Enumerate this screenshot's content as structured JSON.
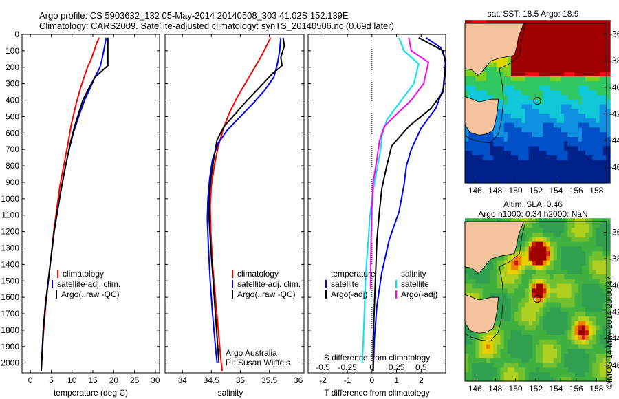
{
  "header": {
    "line1": "Argo profile: CS 5903632_132 05-May-2014 20140508_303 41.02S 152.139E",
    "line2": "Climatology: CARS2009. Satellite-adjusted climatology: synTS_20140506.nc (0.69d later)"
  },
  "colors": {
    "climatology": "#ff0000",
    "satellite": "#0000ff",
    "argo": "#000000",
    "cyan": "#00e5ee",
    "magenta": "#ff00ff",
    "land": "#f5c29e"
  },
  "chart_data": [
    {
      "type": "line",
      "id": "temperature",
      "xlabel": "temperature (deg C)",
      "xlim": [
        -2,
        31
      ],
      "xticks": [
        0,
        5,
        10,
        15,
        20,
        25,
        30
      ],
      "ylim": [
        2060,
        0
      ],
      "yticks": [
        0,
        100,
        200,
        300,
        400,
        500,
        600,
        700,
        800,
        900,
        1000,
        1100,
        1200,
        1300,
        1400,
        1500,
        1600,
        1700,
        1800,
        1900,
        2000
      ],
      "legend": [
        "climatology",
        "satellite-adj. clim.",
        "Argo(..raw -QC)"
      ],
      "series": [
        {
          "name": "climatology",
          "color": "#ff0000",
          "points": [
            [
              16.5,
              20
            ],
            [
              15.8,
              60
            ],
            [
              15.3,
              100
            ],
            [
              14.6,
              150
            ],
            [
              13.7,
              200
            ],
            [
              12.9,
              260
            ],
            [
              12,
              330
            ],
            [
              11,
              420
            ],
            [
              9.8,
              550
            ],
            [
              8.9,
              680
            ],
            [
              8,
              800
            ],
            [
              7.1,
              920
            ],
            [
              6.4,
              1050
            ],
            [
              5.6,
              1200
            ],
            [
              5,
              1350
            ],
            [
              4.3,
              1500
            ],
            [
              3.7,
              1650
            ],
            [
              3.2,
              1800
            ],
            [
              2.8,
              1950
            ],
            [
              2.6,
              2050
            ]
          ]
        },
        {
          "name": "satellite-adj. clim.",
          "color": "#0000ff",
          "points": [
            [
              18.2,
              20
            ],
            [
              17.9,
              60
            ],
            [
              17.6,
              100
            ],
            [
              17.2,
              150
            ],
            [
              16.7,
              200
            ],
            [
              15.5,
              260
            ],
            [
              14.3,
              330
            ],
            [
              13,
              400
            ],
            [
              11.6,
              500
            ],
            [
              10.3,
              600
            ],
            [
              9.3,
              700
            ],
            [
              8.3,
              820
            ],
            [
              7.4,
              940
            ],
            [
              6.5,
              1080
            ],
            [
              5.7,
              1200
            ],
            [
              5,
              1350
            ],
            [
              4.3,
              1500
            ],
            [
              3.6,
              1650
            ],
            [
              3.1,
              1800
            ],
            [
              2.8,
              1950
            ],
            [
              2.6,
              2050
            ]
          ]
        },
        {
          "name": "Argo(..raw -QC)",
          "color": "#000000",
          "points": [
            [
              18.6,
              20
            ],
            [
              18.6,
              100
            ],
            [
              18.6,
              190
            ],
            [
              15.5,
              260
            ],
            [
              14,
              330
            ],
            [
              12.6,
              400
            ],
            [
              11.6,
              480
            ],
            [
              10.6,
              560
            ],
            [
              9.8,
              640
            ],
            [
              9.1,
              720
            ],
            [
              8.3,
              820
            ],
            [
              7.4,
              940
            ],
            [
              6.5,
              1070
            ],
            [
              5.7,
              1200
            ],
            [
              5,
              1350
            ],
            [
              4.3,
              1500
            ],
            [
              3.6,
              1650
            ],
            [
              3.1,
              1800
            ],
            [
              2.8,
              1950
            ],
            [
              2.6,
              2050
            ]
          ]
        }
      ]
    },
    {
      "type": "line",
      "id": "salinity",
      "xlabel": "salinity",
      "xlim": [
        33.7,
        36.1
      ],
      "xticks": [
        34,
        34.5,
        35,
        35.5,
        36
      ],
      "ylim": [
        2060,
        0
      ],
      "legend": [
        "climatology",
        "satellite-adj. clim.",
        "Argo(..raw -QC)"
      ],
      "annotation": [
        "Argo Australia",
        "PI: Susan Wijffels"
      ],
      "series": [
        {
          "name": "climatology",
          "color": "#ff0000",
          "points": [
            [
              35.52,
              20
            ],
            [
              35.44,
              80
            ],
            [
              35.35,
              140
            ],
            [
              35.25,
              200
            ],
            [
              35.1,
              290
            ],
            [
              34.95,
              380
            ],
            [
              34.82,
              470
            ],
            [
              34.72,
              560
            ],
            [
              34.62,
              680
            ],
            [
              34.55,
              800
            ],
            [
              34.5,
              920
            ],
            [
              34.48,
              1040
            ],
            [
              34.49,
              1200
            ],
            [
              34.52,
              1400
            ],
            [
              34.57,
              1600
            ],
            [
              34.62,
              1800
            ],
            [
              34.67,
              2000
            ],
            [
              34.69,
              2050
            ]
          ]
        },
        {
          "name": "satellite-adj. clim.",
          "color": "#0000ff",
          "points": [
            [
              35.7,
              20
            ],
            [
              35.68,
              100
            ],
            [
              35.64,
              180
            ],
            [
              35.58,
              260
            ],
            [
              35.42,
              340
            ],
            [
              35.22,
              420
            ],
            [
              35.0,
              500
            ],
            [
              34.78,
              580
            ],
            [
              34.62,
              660
            ],
            [
              34.52,
              760
            ],
            [
              34.47,
              880
            ],
            [
              34.44,
              1000
            ],
            [
              34.43,
              1120
            ],
            [
              34.45,
              1300
            ],
            [
              34.48,
              1500
            ],
            [
              34.52,
              1700
            ],
            [
              34.57,
              1900
            ],
            [
              34.6,
              2000
            ]
          ]
        },
        {
          "name": "Argo(..raw -QC)",
          "color": "#000000",
          "points": [
            [
              35.74,
              20
            ],
            [
              35.76,
              70
            ],
            [
              35.7,
              140
            ],
            [
              35.72,
              190
            ],
            [
              35.55,
              240
            ],
            [
              35.34,
              320
            ],
            [
              35.12,
              400
            ],
            [
              34.92,
              480
            ],
            [
              34.72,
              560
            ],
            [
              34.6,
              640
            ],
            [
              34.54,
              760
            ],
            [
              34.49,
              880
            ],
            [
              34.46,
              1000
            ],
            [
              34.46,
              1120
            ],
            [
              34.49,
              1300
            ],
            [
              34.53,
              1500
            ],
            [
              34.57,
              1700
            ],
            [
              34.61,
              1900
            ],
            [
              34.63,
              2000
            ]
          ]
        }
      ]
    },
    {
      "type": "line",
      "id": "difference",
      "xlabel": "T difference from climatology",
      "xlabel_top": "S difference from climatology",
      "xlim": [
        -2.6,
        3.0
      ],
      "xticks": [
        -2,
        -1,
        0,
        1,
        2
      ],
      "xticks_s": [
        -0.5,
        -0.25,
        0,
        0.25,
        0.5
      ],
      "ylim": [
        2060,
        0
      ],
      "legend_t": {
        "title": "temperature",
        "items": [
          "satellite",
          "Argo(-adj)"
        ]
      },
      "legend_s": {
        "title": "salinity",
        "items": [
          "satellite",
          "Argo(-adj)"
        ]
      },
      "series": [
        {
          "name": "satellite",
          "color": "#0000ff",
          "points": [
            [
              2.2,
              20
            ],
            [
              2.8,
              80
            ],
            [
              3.0,
              160
            ],
            [
              2.9,
              330
            ],
            [
              2.6,
              450
            ],
            [
              2.0,
              570
            ],
            [
              1.6,
              700
            ],
            [
              1.4,
              800
            ],
            [
              1.3,
              920
            ],
            [
              1.1,
              1080
            ],
            [
              0.7,
              1250
            ],
            [
              0.4,
              1450
            ],
            [
              0.2,
              1650
            ],
            [
              0.1,
              1850
            ],
            [
              0.05,
              2050
            ]
          ]
        },
        {
          "name": "Argo(-adj)",
          "color": "#000000",
          "points": [
            [
              1.9,
              20
            ],
            [
              2.9,
              100
            ],
            [
              3.0,
              180
            ],
            [
              2.9,
              350
            ],
            [
              2.4,
              450
            ],
            [
              1.5,
              560
            ],
            [
              0.8,
              680
            ],
            [
              0.6,
              800
            ],
            [
              0.4,
              940
            ],
            [
              0.3,
              1080
            ],
            [
              0.2,
              1250
            ],
            [
              0.15,
              1450
            ],
            [
              0.1,
              1650
            ],
            [
              0.05,
              1850
            ],
            [
              0.05,
              2050
            ]
          ]
        },
        {
          "name": "satellite",
          "color": "#00e5ee",
          "points": [
            [
              1.1,
              20
            ],
            [
              1.3,
              100
            ],
            [
              1.9,
              180
            ],
            [
              1.7,
              300
            ],
            [
              1.2,
              400
            ],
            [
              0.6,
              520
            ],
            [
              0.4,
              620
            ],
            [
              0.35,
              700
            ],
            [
              0.2,
              820
            ],
            [
              0.05,
              950
            ],
            [
              -0.08,
              1100
            ],
            [
              -0.15,
              1250
            ],
            [
              -0.25,
              1450
            ],
            [
              -0.3,
              1650
            ],
            [
              -0.35,
              1850
            ],
            [
              -0.4,
              2000
            ]
          ]
        },
        {
          "name": "Argo(-adj)",
          "color": "#ff00ff",
          "points": [
            [
              1.5,
              20
            ],
            [
              1.6,
              100
            ],
            [
              2.3,
              170
            ],
            [
              2.1,
              300
            ],
            [
              1.6,
              400
            ],
            [
              0.9,
              500
            ],
            [
              0.5,
              560
            ],
            [
              0.3,
              650
            ],
            [
              0.2,
              760
            ],
            [
              0.05,
              900
            ],
            [
              0,
              1050
            ],
            [
              -0.03,
              1200
            ],
            [
              -0.05,
              1400
            ],
            [
              -0.05,
              1550
            ]
          ]
        }
      ]
    },
    {
      "type": "heatmap",
      "id": "sst-map",
      "title": "sat. SST: 18.5  Argo: 18.9",
      "xlim": [
        145,
        159
      ],
      "ylim": [
        -47.2,
        -35.2
      ],
      "xticks": [
        146,
        148,
        150,
        152,
        154,
        156,
        158
      ],
      "yticks": [
        -36,
        -38,
        -40,
        -42,
        -44,
        -46
      ],
      "marker": [
        152.139,
        -41.02
      ]
    },
    {
      "type": "heatmap",
      "id": "sla-map",
      "title": "Altim. SLA: 0.46",
      "subtitle": "Argo h1000: 0.34 h2000: NaN",
      "xlim": [
        145,
        159
      ],
      "ylim": [
        -47.2,
        -35.2
      ],
      "xticks": [
        146,
        148,
        150,
        152,
        154,
        156,
        158
      ],
      "yticks": [
        -36,
        -38,
        -40,
        -42,
        -44,
        -46
      ],
      "marker": [
        152.139,
        -41.02
      ]
    }
  ],
  "footer": {
    "vertical": "©IMOS 14-May-2014 20:00:47"
  }
}
